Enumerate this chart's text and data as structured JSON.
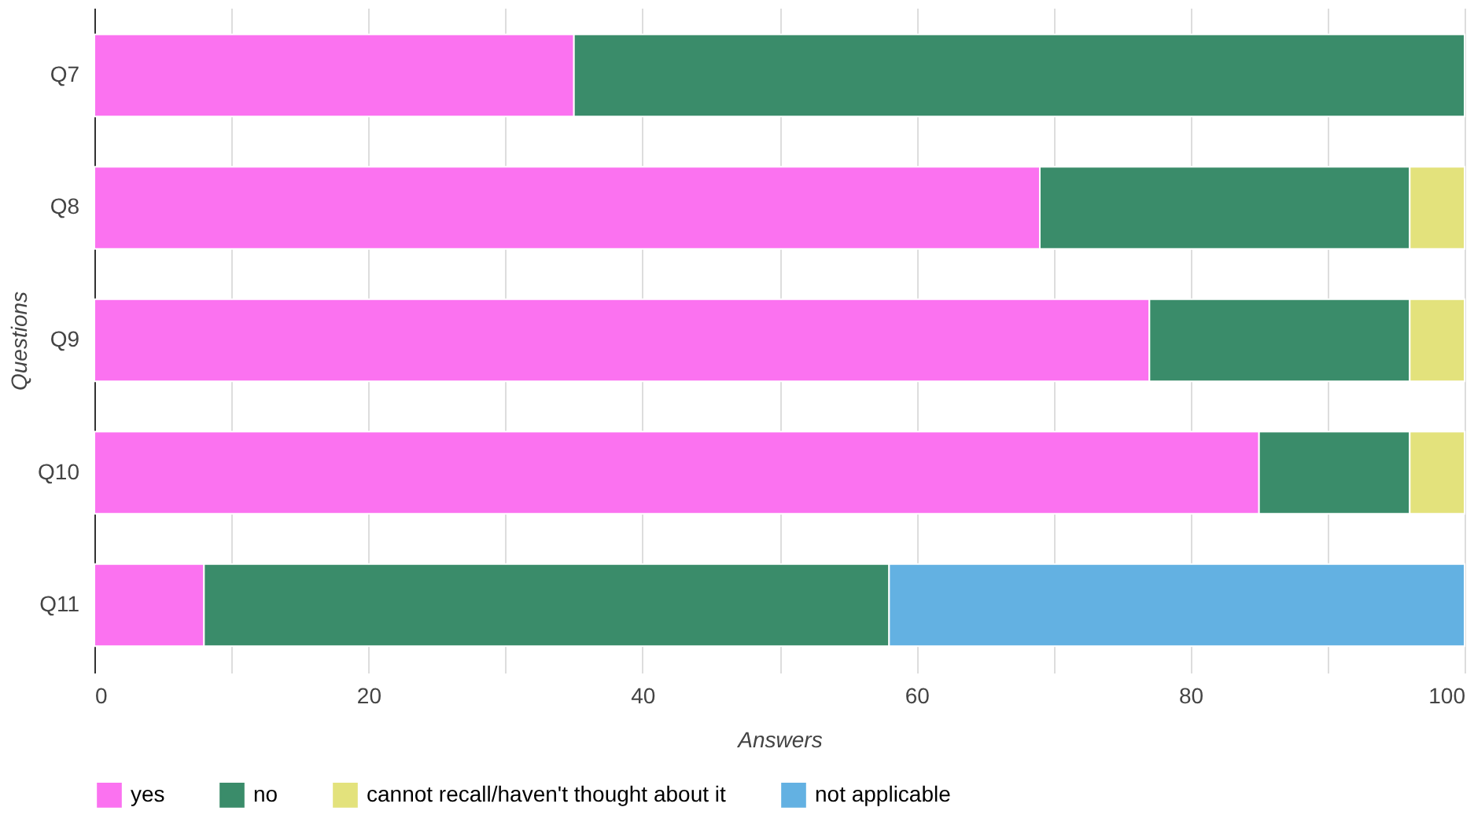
{
  "chart_data": {
    "type": "bar",
    "orientation": "horizontal",
    "stacked": true,
    "xlabel": "Answers",
    "ylabel": "Questions",
    "categories": [
      "Q7",
      "Q8",
      "Q9",
      "Q10",
      "Q11"
    ],
    "series": [
      {
        "name": "yes",
        "color": "#fb72f0",
        "values": [
          35,
          69,
          77,
          85,
          8
        ]
      },
      {
        "name": "no",
        "color": "#3a8c6a",
        "values": [
          65,
          27,
          19,
          11,
          50
        ]
      },
      {
        "name": "cannot recall/haven't thought about it",
        "color": "#e3e27c",
        "values": [
          0,
          4,
          4,
          4,
          0
        ]
      },
      {
        "name": "not applicable",
        "color": "#63b1e2",
        "values": [
          0,
          0,
          0,
          0,
          42
        ]
      }
    ],
    "xlim": [
      0,
      100
    ],
    "xticks": [
      0,
      {
        "value": 10,
        "label": null
      },
      20,
      {
        "value": 30,
        "label": null
      },
      40,
      {
        "value": 50,
        "label": null
      },
      60,
      {
        "value": 70,
        "label": null
      },
      80,
      {
        "value": 90,
        "label": null
      },
      100
    ],
    "grid": "x",
    "legend": "bottom"
  }
}
